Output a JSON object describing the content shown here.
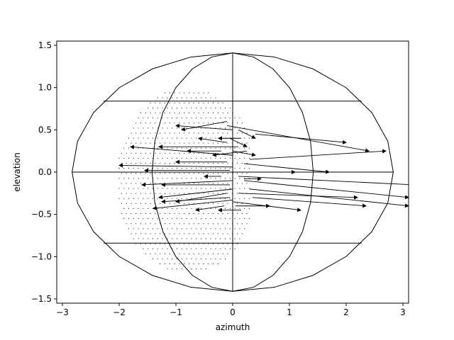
{
  "chart_data": {
    "type": "quiver",
    "title": "",
    "xlabel": "azimuth",
    "ylabel": "elevation",
    "xlim": [
      -3.1,
      3.1
    ],
    "ylim": [
      -1.55,
      1.55
    ],
    "xticks": [
      -3,
      -2,
      -1,
      0,
      1,
      2,
      3
    ],
    "xtick_labels": [
      "−3",
      "−2",
      "−1",
      "0",
      "1",
      "2",
      "3"
    ],
    "yticks": [
      -1.5,
      -1.0,
      -0.5,
      0.0,
      0.5,
      1.0,
      1.5
    ],
    "ytick_labels": [
      "−1.5",
      "−1.0",
      "−0.5",
      "0.0",
      "0.5",
      "1.0",
      "1.5"
    ],
    "grid": false,
    "projection_outline": {
      "outer_x_halfwidth": 2.83,
      "outer_y_halfheight": 1.41,
      "inner_x_halfwidth": 1.42,
      "parallels": [
        0.84,
        0.0,
        -0.84
      ],
      "center_meridian": 0.0
    },
    "dots_region": {
      "x_center": -0.8,
      "y_center": -0.1,
      "x_halfwidth": 1.25,
      "y_halfheight": 1.1,
      "spacing": 0.085
    },
    "vectors": [
      {
        "x": -0.1,
        "y": 0.55,
        "u": 2.5,
        "v": -0.3
      },
      {
        "x": 0.4,
        "y": 0.45,
        "u": 1.6,
        "v": -0.1
      },
      {
        "x": 0.3,
        "y": 0.15,
        "u": 2.4,
        "v": 0.1
      },
      {
        "x": 0.2,
        "y": 0.1,
        "u": 1.5,
        "v": -0.1
      },
      {
        "x": 0.1,
        "y": 0.0,
        "u": 1.0,
        "v": 0.0
      },
      {
        "x": 0.1,
        "y": -0.05,
        "u": 3.1,
        "v": -0.1
      },
      {
        "x": 0.2,
        "y": -0.1,
        "u": 2.9,
        "v": -0.2
      },
      {
        "x": 0.3,
        "y": -0.2,
        "u": 2.8,
        "v": -0.2
      },
      {
        "x": 0.1,
        "y": -0.25,
        "u": 2.1,
        "v": -0.05
      },
      {
        "x": 0.35,
        "y": -0.3,
        "u": 2.0,
        "v": -0.1
      },
      {
        "x": 0.0,
        "y": -0.35,
        "u": 1.2,
        "v": -0.1
      },
      {
        "x": 0.05,
        "y": -0.4,
        "u": 0.6,
        "v": 0.0
      },
      {
        "x": -0.1,
        "y": 0.6,
        "u": -0.8,
        "v": -0.1
      },
      {
        "x": 0.0,
        "y": 0.5,
        "u": -1.0,
        "v": 0.05
      },
      {
        "x": 0.1,
        "y": 0.3,
        "u": -1.4,
        "v": 0.0
      },
      {
        "x": 0.0,
        "y": 0.2,
        "u": -1.8,
        "v": 0.1
      },
      {
        "x": -0.1,
        "y": 0.12,
        "u": -0.9,
        "v": 0.0
      },
      {
        "x": 0.0,
        "y": 0.06,
        "u": -2.0,
        "v": 0.02
      },
      {
        "x": -0.05,
        "y": 0.02,
        "u": -1.5,
        "v": 0.0
      },
      {
        "x": 0.0,
        "y": -0.1,
        "u": -1.6,
        "v": -0.05
      },
      {
        "x": -0.05,
        "y": -0.15,
        "u": -1.2,
        "v": 0.0
      },
      {
        "x": 0.0,
        "y": -0.2,
        "u": -1.3,
        "v": -0.1
      },
      {
        "x": -0.1,
        "y": -0.25,
        "u": -0.9,
        "v": -0.1
      },
      {
        "x": -0.05,
        "y": -0.3,
        "u": -1.2,
        "v": -0.05
      },
      {
        "x": 0.0,
        "y": -0.33,
        "u": -1.4,
        "v": -0.1
      },
      {
        "x": -0.15,
        "y": -0.4,
        "u": -0.5,
        "v": -0.05
      },
      {
        "x": -0.2,
        "y": 0.25,
        "u": -0.6,
        "v": 0.0
      },
      {
        "x": -0.1,
        "y": 0.35,
        "u": -0.5,
        "v": 0.05
      },
      {
        "x": 0.15,
        "y": 0.4,
        "u": -0.4,
        "v": 0.0
      },
      {
        "x": -0.2,
        "y": -0.05,
        "u": -0.3,
        "v": 0.0
      },
      {
        "x": 0.25,
        "y": 0.25,
        "u": -0.6,
        "v": -0.05
      },
      {
        "x": 0.15,
        "y": -0.45,
        "u": -0.4,
        "v": 0.0
      },
      {
        "x": 0.2,
        "y": -0.08,
        "u": 0.3,
        "v": 0.0
      },
      {
        "x": 0.0,
        "y": 0.25,
        "u": 0.4,
        "v": -0.05
      },
      {
        "x": -0.05,
        "y": 0.4,
        "u": 0.3,
        "v": -0.1
      },
      {
        "x": 0.1,
        "y": 0.5,
        "u": 0.3,
        "v": -0.1
      }
    ]
  }
}
